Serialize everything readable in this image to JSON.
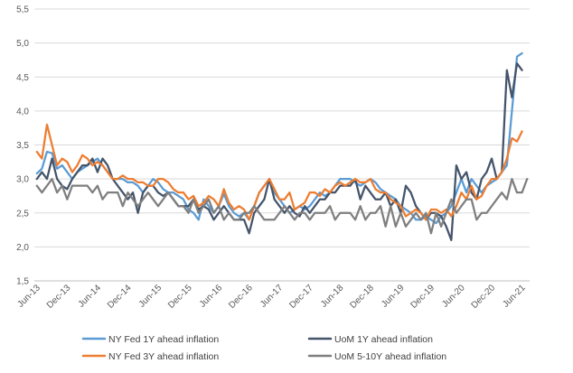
{
  "chart_data": {
    "type": "line",
    "title": "",
    "xlabel": "",
    "ylabel": "",
    "ylim": [
      1.5,
      5.5
    ],
    "yticks": [
      "1,5",
      "2,0",
      "2,5",
      "3,0",
      "3,5",
      "4,0",
      "4,5",
      "5,0",
      "5,5"
    ],
    "x_start": "Jun-13",
    "x_months": 98,
    "xtick_labels": [
      "Jun-13",
      "Dec-13",
      "Jun-14",
      "Dec-14",
      "Jun-15",
      "Dec-15",
      "Jun-16",
      "Dec-16",
      "Jun-17",
      "Dec-17",
      "Jun-18",
      "Dec-18",
      "Jun-19",
      "Dec-19",
      "Jun-20",
      "Dec-20",
      "Jun-21"
    ],
    "legend_position": "bottom",
    "series": [
      {
        "name": "NY Fed 1Y ahead inflation",
        "color": "#5B9BD5",
        "values": [
          3.08,
          3.15,
          3.4,
          3.38,
          3.15,
          3.2,
          3.1,
          3.0,
          3.1,
          3.15,
          3.2,
          3.25,
          3.3,
          3.2,
          3.1,
          3.0,
          3.0,
          3.0,
          2.95,
          2.95,
          2.9,
          2.8,
          2.9,
          3.0,
          2.95,
          2.85,
          2.8,
          2.8,
          2.75,
          2.7,
          2.55,
          2.5,
          2.4,
          2.7,
          2.6,
          2.5,
          2.6,
          2.78,
          2.6,
          2.5,
          2.45,
          2.5,
          2.4,
          2.6,
          2.8,
          2.9,
          3.0,
          2.8,
          2.7,
          2.6,
          2.5,
          2.55,
          2.6,
          2.55,
          2.6,
          2.7,
          2.8,
          2.75,
          2.8,
          2.9,
          3.0,
          3.0,
          3.0,
          2.95,
          2.9,
          2.95,
          3.0,
          2.95,
          2.85,
          2.8,
          2.75,
          2.7,
          2.6,
          2.55,
          2.5,
          2.4,
          2.4,
          2.45,
          2.4,
          2.35,
          2.45,
          2.5,
          2.6,
          2.8,
          3.0,
          2.8,
          3.0,
          2.9,
          2.8,
          2.9,
          2.95,
          3.0,
          3.1,
          3.2,
          4.0,
          4.8,
          4.85,
          null
        ]
      },
      {
        "name": "UoM 1Y ahead inflation",
        "color": "#44546A",
        "values": [
          3.0,
          3.1,
          3.0,
          3.3,
          3.0,
          2.9,
          2.85,
          3.0,
          3.1,
          3.2,
          3.2,
          3.3,
          3.1,
          3.3,
          3.2,
          3.0,
          2.9,
          2.8,
          2.7,
          2.8,
          2.5,
          2.8,
          2.9,
          2.9,
          2.8,
          2.75,
          2.8,
          2.7,
          2.6,
          2.6,
          2.6,
          2.7,
          2.55,
          2.6,
          2.55,
          2.4,
          2.5,
          2.6,
          2.5,
          2.4,
          2.4,
          2.4,
          2.2,
          2.5,
          2.6,
          2.7,
          3.0,
          2.7,
          2.6,
          2.5,
          2.6,
          2.5,
          2.45,
          2.6,
          2.5,
          2.6,
          2.7,
          2.7,
          2.8,
          2.8,
          2.9,
          2.9,
          2.9,
          3.0,
          2.7,
          2.9,
          2.8,
          2.7,
          2.7,
          2.8,
          2.6,
          2.7,
          2.5,
          2.9,
          2.8,
          2.6,
          2.5,
          2.4,
          2.5,
          2.5,
          2.45,
          2.3,
          2.1,
          3.2,
          3.0,
          3.1,
          2.8,
          2.7,
          3.0,
          3.1,
          3.3,
          3.0,
          3.1,
          4.6,
          4.2,
          4.7,
          4.6,
          null
        ]
      },
      {
        "name": "NY Fed 3Y ahead inflation",
        "color": "#ED7D31",
        "values": [
          3.4,
          3.3,
          3.8,
          3.5,
          3.2,
          3.3,
          3.25,
          3.1,
          3.2,
          3.35,
          3.3,
          3.2,
          3.25,
          3.2,
          3.1,
          3.0,
          3.0,
          3.05,
          3.0,
          3.0,
          2.95,
          2.95,
          2.9,
          2.9,
          3.0,
          3.0,
          2.95,
          2.85,
          2.8,
          2.8,
          2.7,
          2.75,
          2.6,
          2.65,
          2.75,
          2.7,
          2.6,
          2.85,
          2.65,
          2.55,
          2.6,
          2.55,
          2.4,
          2.6,
          2.8,
          2.9,
          3.0,
          2.85,
          2.7,
          2.7,
          2.8,
          2.55,
          2.6,
          2.65,
          2.8,
          2.8,
          2.75,
          2.85,
          2.8,
          2.9,
          2.95,
          2.9,
          2.95,
          3.0,
          2.95,
          2.95,
          3.0,
          2.85,
          2.8,
          2.8,
          2.7,
          2.65,
          2.6,
          2.45,
          2.5,
          2.55,
          2.5,
          2.4,
          2.55,
          2.55,
          2.5,
          2.55,
          2.45,
          2.6,
          2.8,
          2.7,
          2.9,
          2.7,
          2.75,
          2.9,
          3.0,
          3.0,
          3.1,
          3.3,
          3.6,
          3.55,
          3.7,
          null
        ]
      },
      {
        "name": "UoM 5-10Y ahead inflation",
        "color": "#7F7F7F",
        "values": [
          2.9,
          2.8,
          2.9,
          3.0,
          2.8,
          2.9,
          2.7,
          2.9,
          2.9,
          2.9,
          2.9,
          2.8,
          2.9,
          2.7,
          2.8,
          2.8,
          2.8,
          2.6,
          2.8,
          2.7,
          2.6,
          2.7,
          2.8,
          2.7,
          2.6,
          2.7,
          2.8,
          2.7,
          2.6,
          2.6,
          2.5,
          2.7,
          2.5,
          2.6,
          2.7,
          2.5,
          2.6,
          2.4,
          2.5,
          2.4,
          2.4,
          2.5,
          2.5,
          2.6,
          2.5,
          2.4,
          2.4,
          2.4,
          2.5,
          2.6,
          2.5,
          2.4,
          2.5,
          2.5,
          2.4,
          2.5,
          2.5,
          2.5,
          2.6,
          2.4,
          2.5,
          2.5,
          2.5,
          2.4,
          2.6,
          2.4,
          2.5,
          2.5,
          2.6,
          2.3,
          2.6,
          2.3,
          2.5,
          2.3,
          2.4,
          2.5,
          2.4,
          2.5,
          2.2,
          2.5,
          2.3,
          2.5,
          2.7,
          2.5,
          2.6,
          2.7,
          2.7,
          2.4,
          2.5,
          2.5,
          2.6,
          2.7,
          2.8,
          2.7,
          3.0,
          2.8,
          2.8,
          3.0
        ]
      }
    ]
  }
}
